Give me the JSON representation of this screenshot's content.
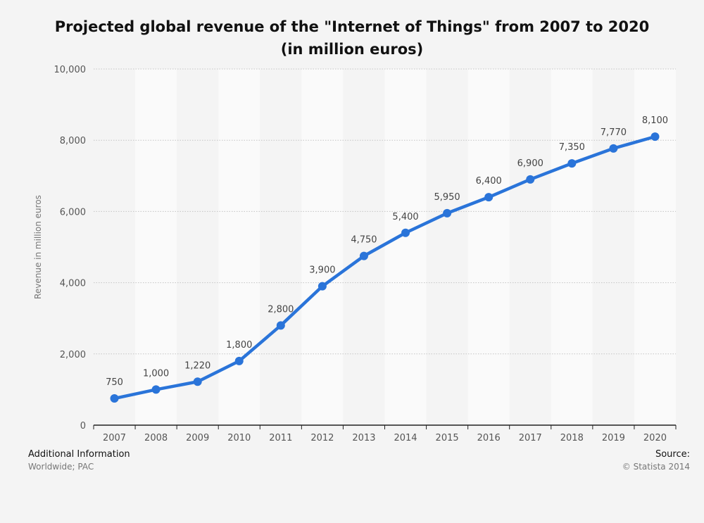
{
  "chart_data": {
    "type": "line",
    "title_line1": "Projected global revenue of the \"Internet of Things\" from 2007 to 2020",
    "title_line2": "(in million euros)",
    "ylabel": "Revenue in million euros",
    "xlabel": "",
    "ylim": [
      0,
      10000
    ],
    "yticks": [
      0,
      2000,
      4000,
      6000,
      8000,
      10000
    ],
    "ytick_labels": [
      "0",
      "2,000",
      "4,000",
      "6,000",
      "8,000",
      "10,000"
    ],
    "categories": [
      "2007",
      "2008",
      "2009",
      "2010",
      "2011",
      "2012",
      "2013",
      "2014",
      "2015",
      "2016",
      "2017",
      "2018",
      "2019",
      "2020"
    ],
    "values": [
      750,
      1000,
      1220,
      1800,
      2800,
      3900,
      4750,
      5400,
      5950,
      6400,
      6900,
      7350,
      7770,
      8100
    ],
    "value_labels": [
      "750",
      "1,000",
      "1,220",
      "1,800",
      "2,800",
      "3,900",
      "4,750",
      "5,400",
      "5,950",
      "6,400",
      "6,900",
      "7,350",
      "7,770",
      "8,100"
    ],
    "series_color": "#2a74d9",
    "grid": true
  },
  "footer": {
    "additional_info_label": "Additional Information",
    "additional_info_value": "Worldwide; PAC",
    "source_label": "Source:",
    "source_value": "© Statista 2014"
  }
}
